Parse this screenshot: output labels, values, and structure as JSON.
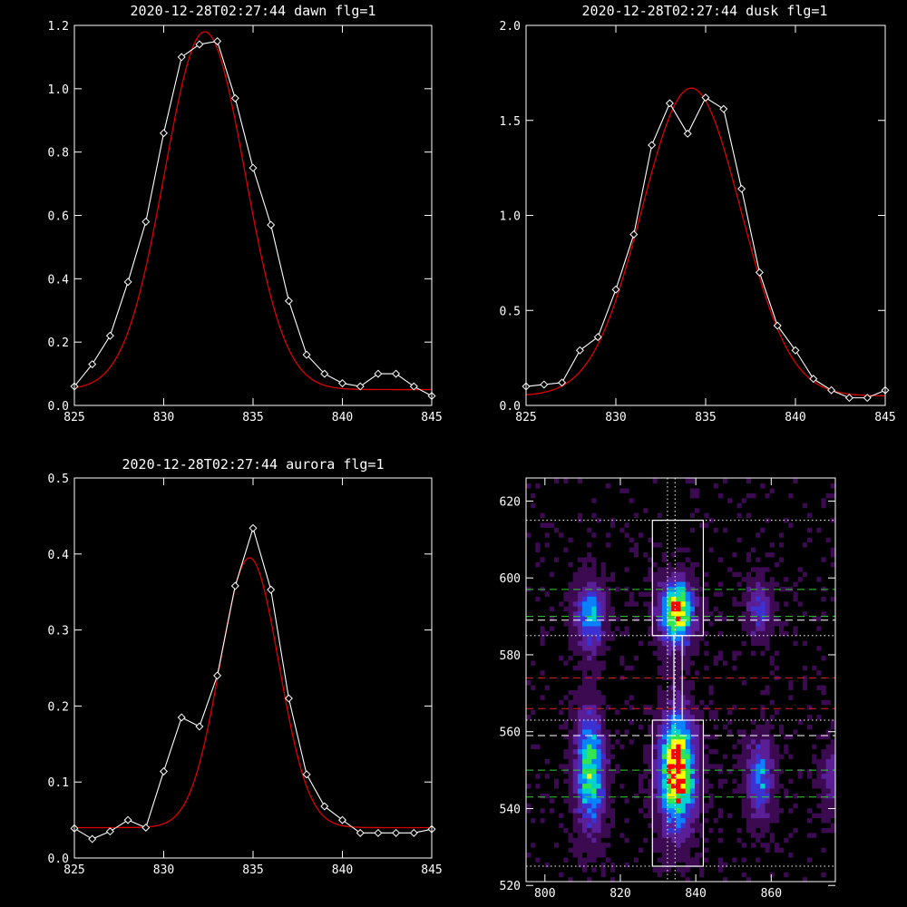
{
  "chart_data": [
    {
      "type": "line",
      "title": "2020-12-28T02:27:44 dawn flg=1",
      "xlim": [
        825,
        845
      ],
      "ylim": [
        0,
        1.2
      ],
      "xticks": [
        825,
        830,
        835,
        840,
        845
      ],
      "yticks": [
        0.0,
        0.2,
        0.4,
        0.6,
        0.8,
        1.0,
        1.2
      ],
      "xtick_labels": [
        "825",
        "830",
        "835",
        "840",
        "845"
      ],
      "ytick_labels": [
        "0.0",
        "0.2",
        "0.4",
        "0.6",
        "0.8",
        "1.0",
        "1.2"
      ],
      "series": [
        {
          "color": "#ffffff",
          "markers": "diamond",
          "x": [
            825,
            826,
            827,
            828,
            829,
            830,
            831,
            832,
            833,
            834,
            835,
            836,
            837,
            838,
            839,
            840,
            841,
            842,
            843,
            844,
            845
          ],
          "y": [
            0.06,
            0.13,
            0.22,
            0.39,
            0.58,
            0.86,
            1.1,
            1.14,
            1.15,
            0.97,
            0.75,
            0.57,
            0.33,
            0.16,
            0.1,
            0.07,
            0.06,
            0.1,
            0.1,
            0.06,
            0.03
          ]
        },
        {
          "color": "#dd0000",
          "fit": "gaussian",
          "center": 832.3,
          "sigma": 2.25,
          "amplitude": 1.13,
          "baseline": 0.05,
          "slope": 0.0
        }
      ]
    },
    {
      "type": "line",
      "title": "2020-12-28T02:27:44 dusk flg=1",
      "xlim": [
        825,
        845
      ],
      "ylim": [
        0,
        2.0
      ],
      "xticks": [
        825,
        830,
        835,
        840,
        845
      ],
      "yticks": [
        0.0,
        0.5,
        1.0,
        1.5,
        2.0
      ],
      "xtick_labels": [
        "825",
        "830",
        "835",
        "840",
        "845"
      ],
      "ytick_labels": [
        "0.0",
        "0.5",
        "1.0",
        "1.5",
        "2.0"
      ],
      "series": [
        {
          "color": "#ffffff",
          "markers": "diamond",
          "x": [
            825,
            826,
            827,
            828,
            829,
            830,
            831,
            832,
            833,
            834,
            835,
            836,
            837,
            838,
            839,
            840,
            841,
            842,
            843,
            844,
            845
          ],
          "y": [
            0.1,
            0.11,
            0.12,
            0.29,
            0.36,
            0.61,
            0.9,
            1.37,
            1.59,
            1.43,
            1.62,
            1.56,
            1.14,
            0.7,
            0.42,
            0.29,
            0.14,
            0.08,
            0.04,
            0.04,
            0.08
          ]
        },
        {
          "color": "#dd0000",
          "fit": "gaussian",
          "center": 834.2,
          "sigma": 2.75,
          "amplitude": 1.62,
          "baseline": 0.05,
          "slope": 0.0
        }
      ]
    },
    {
      "type": "line",
      "title": "2020-12-28T02:27:44 aurora flg=1",
      "xlim": [
        825,
        845
      ],
      "ylim": [
        0,
        0.5
      ],
      "xticks": [
        825,
        830,
        835,
        840,
        845
      ],
      "yticks": [
        0.0,
        0.1,
        0.2,
        0.3,
        0.4,
        0.5
      ],
      "xtick_labels": [
        "825",
        "830",
        "835",
        "840",
        "845"
      ],
      "ytick_labels": [
        "0.0",
        "0.1",
        "0.2",
        "0.3",
        "0.4",
        "0.5"
      ],
      "series": [
        {
          "color": "#ffffff",
          "markers": "diamond",
          "x": [
            825,
            826,
            827,
            828,
            829,
            830,
            831,
            832,
            833,
            834,
            835,
            836,
            837,
            838,
            839,
            840,
            841,
            842,
            843,
            844,
            845
          ],
          "y": [
            0.039,
            0.025,
            0.035,
            0.05,
            0.04,
            0.114,
            0.185,
            0.173,
            0.24,
            0.358,
            0.434,
            0.353,
            0.21,
            0.11,
            0.068,
            0.05,
            0.033,
            0.033,
            0.033,
            0.033,
            0.038
          ]
        },
        {
          "color": "#dd0000",
          "fit": "gaussian",
          "center": 834.8,
          "sigma": 1.65,
          "amplitude": 0.355,
          "baseline": 0.04,
          "slope": 0.0
        }
      ]
    },
    {
      "type": "heatmap",
      "title": "",
      "xlim": [
        795,
        877
      ],
      "ylim": [
        521,
        626
      ],
      "xticks": [
        800,
        820,
        840,
        860
      ],
      "yticks": [
        520,
        540,
        560,
        580,
        600,
        620
      ],
      "xtick_labels": [
        "800",
        "820",
        "840",
        "860"
      ],
      "ytick_labels": [
        "520",
        "540",
        "560",
        "580",
        "600",
        "620"
      ],
      "colormap": [
        "#000000",
        "#3c0a50",
        "#5a1e96",
        "#3c32d2",
        "#0a82ff",
        "#00d2d2",
        "#32e650",
        "#ffff00",
        "#ff0000"
      ],
      "blobs": [
        {
          "x": 812,
          "y": 550,
          "sx": 2.6,
          "sy": 10,
          "amp": 0.65
        },
        {
          "x": 812,
          "y": 590,
          "sx": 2.6,
          "sy": 6,
          "amp": 0.5
        },
        {
          "x": 835,
          "y": 550,
          "sx": 3.2,
          "sy": 10,
          "amp": 0.95
        },
        {
          "x": 835,
          "y": 591,
          "sx": 3.0,
          "sy": 5.5,
          "amp": 0.88
        },
        {
          "x": 857,
          "y": 548,
          "sx": 2.4,
          "sy": 7,
          "amp": 0.42
        },
        {
          "x": 857,
          "y": 592,
          "sx": 2.4,
          "sy": 5,
          "amp": 0.3
        },
        {
          "x": 876,
          "y": 548,
          "sx": 2.0,
          "sy": 6,
          "amp": 0.22
        }
      ],
      "vlines": [
        {
          "x": 832.5,
          "color": "#ffffff",
          "style": "dotted"
        },
        {
          "x": 834.5,
          "color": "#ffffff",
          "style": "dotted"
        }
      ],
      "hlines": [
        {
          "y": 615,
          "color": "#ffffff",
          "style": "dotted"
        },
        {
          "y": 597,
          "color": "#33cc33",
          "style": "dashed"
        },
        {
          "y": 590,
          "color": "#33cc33",
          "style": "dashed"
        },
        {
          "y": 589,
          "color": "#ffffff",
          "style": "dashed"
        },
        {
          "y": 585,
          "color": "#ffffff",
          "style": "dotted"
        },
        {
          "y": 574,
          "color": "#dd2222",
          "style": "dashed"
        },
        {
          "y": 566,
          "color": "#dd2222",
          "style": "dashed"
        },
        {
          "y": 563,
          "color": "#ffffff",
          "style": "dotted"
        },
        {
          "y": 559,
          "color": "#ffffff",
          "style": "dashed"
        },
        {
          "y": 550,
          "color": "#33cc33",
          "style": "dashed"
        },
        {
          "y": 543,
          "color": "#33cc33",
          "style": "dashed"
        },
        {
          "y": 525,
          "color": "#ffffff",
          "style": "dotted"
        }
      ],
      "boxes": [
        {
          "x0": 828.5,
          "x1": 842,
          "y0": 585,
          "y1": 615
        },
        {
          "x0": 828.5,
          "x1": 842,
          "y0": 525,
          "y1": 563
        },
        {
          "x0": 834.2,
          "x1": 836.4,
          "y0": 563,
          "y1": 585
        }
      ]
    }
  ]
}
